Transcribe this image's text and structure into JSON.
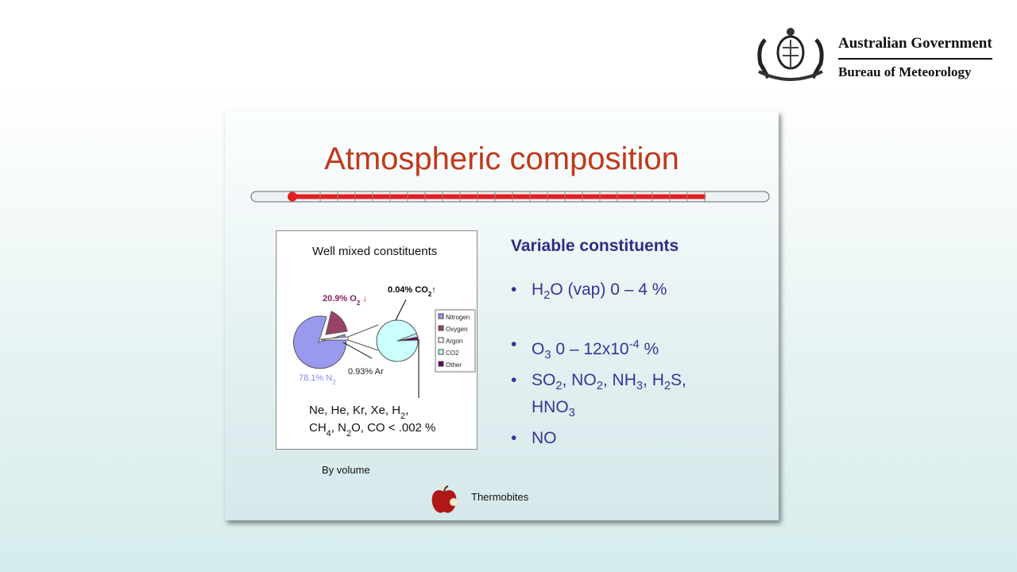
{
  "header": {
    "government": "Australian Government",
    "agency": "Bureau of Meteorology"
  },
  "slide": {
    "title": "Atmospheric composition",
    "figure": {
      "title": "Well mixed constituents",
      "oxygen_label": [
        "20.9% O",
        "2",
        " ↓"
      ],
      "co2_label": [
        "0.04% CO",
        "2",
        "↑"
      ],
      "nitrogen_label": [
        "78.1% N",
        "2"
      ],
      "argon_label": "0.93% Ar",
      "trace_lines": [
        [
          "Ne, He, Kr, Xe, H",
          "2",
          ","
        ],
        [
          "CH",
          "4",
          ", N",
          "2",
          "O, CO < .002 %"
        ]
      ],
      "legend": [
        "Nitrogen",
        "Oxygen",
        "Argon",
        "CO2",
        "Other"
      ]
    },
    "caption": "By volume",
    "variable": {
      "heading": "Variable constituents",
      "bullets": [
        [
          "H",
          "2",
          "O (vap) 0 – 4 %"
        ],
        [
          "O",
          "3",
          " 0 – 12x10",
          "-4",
          " %"
        ],
        [
          "SO",
          "2",
          ", NO",
          "2",
          ", NH",
          "3",
          ", H",
          "2",
          "S, HNO",
          "3"
        ],
        [
          "NO"
        ]
      ]
    },
    "link": "Thermobites"
  }
}
